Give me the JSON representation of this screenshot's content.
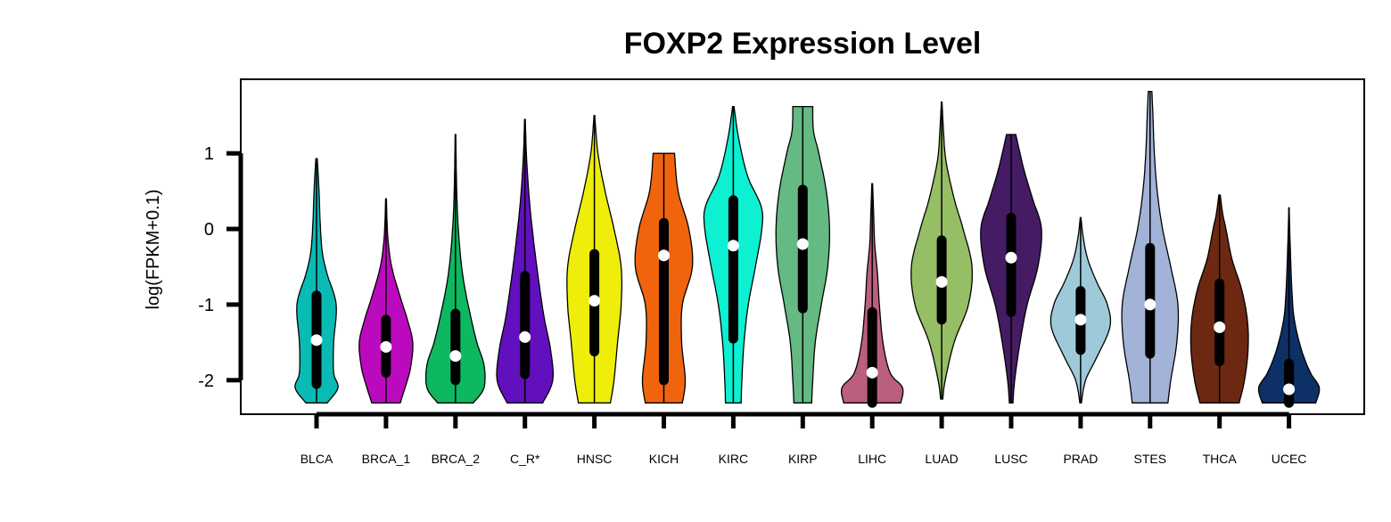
{
  "chart_data": {
    "type": "violin",
    "title": "FOXP2 Expression Level",
    "xlabel": "",
    "ylabel": "log(FPKM+0.1)",
    "ylim": [
      -2.45,
      1.98
    ],
    "yticks": [
      1,
      0,
      -1,
      -2
    ],
    "legend": "none",
    "grid": false,
    "series": [
      {
        "category": "BLCA",
        "color": "#0ABAB5",
        "min": -2.3,
        "max": 0.93,
        "q1": -2.05,
        "q3": -0.88,
        "median": -1.47,
        "profile": [
          [
            -2.3,
            0.3
          ],
          [
            -2.1,
            0.6
          ],
          [
            -1.9,
            0.48
          ],
          [
            -1.5,
            0.48
          ],
          [
            -1.0,
            0.55
          ],
          [
            -0.6,
            0.3
          ],
          [
            -0.3,
            0.16
          ],
          [
            0.1,
            0.1
          ],
          [
            0.5,
            0.07
          ],
          [
            0.93,
            0.02
          ]
        ]
      },
      {
        "category": "BRCA_1",
        "color": "#BB0ABE",
        "min": -2.3,
        "max": 0.4,
        "q1": -1.9,
        "q3": -1.2,
        "median": -1.56,
        "profile": [
          [
            -2.3,
            0.4
          ],
          [
            -2.0,
            0.6
          ],
          [
            -1.8,
            0.7
          ],
          [
            -1.5,
            0.75
          ],
          [
            -1.2,
            0.6
          ],
          [
            -0.9,
            0.4
          ],
          [
            -0.5,
            0.16
          ],
          [
            -0.1,
            0.05
          ],
          [
            0.4,
            0.01
          ]
        ]
      },
      {
        "category": "BRCA_2",
        "color": "#0DB861",
        "min": -2.3,
        "max": 1.25,
        "q1": -2.0,
        "q3": -1.12,
        "median": -1.68,
        "profile": [
          [
            -2.3,
            0.5
          ],
          [
            -2.1,
            0.8
          ],
          [
            -1.8,
            0.8
          ],
          [
            -1.5,
            0.6
          ],
          [
            -1.1,
            0.4
          ],
          [
            -0.6,
            0.2
          ],
          [
            0.0,
            0.08
          ],
          [
            0.6,
            0.03
          ],
          [
            1.25,
            0.01
          ]
        ]
      },
      {
        "category": "C_R*",
        "color": "#6210BE",
        "min": -2.3,
        "max": 1.45,
        "q1": -1.92,
        "q3": -0.62,
        "median": -1.43,
        "profile": [
          [
            -2.3,
            0.5
          ],
          [
            -2.0,
            0.78
          ],
          [
            -1.6,
            0.72
          ],
          [
            -1.2,
            0.55
          ],
          [
            -0.8,
            0.42
          ],
          [
            -0.3,
            0.28
          ],
          [
            0.3,
            0.14
          ],
          [
            0.9,
            0.05
          ],
          [
            1.45,
            0.01
          ]
        ]
      },
      {
        "category": "HNSC",
        "color": "#EEEE0A",
        "min": -2.3,
        "max": 1.5,
        "q1": -1.62,
        "q3": -0.33,
        "median": -0.95,
        "profile": [
          [
            -2.3,
            0.45
          ],
          [
            -2.0,
            0.55
          ],
          [
            -1.5,
            0.65
          ],
          [
            -1.0,
            0.75
          ],
          [
            -0.5,
            0.75
          ],
          [
            0.0,
            0.55
          ],
          [
            0.5,
            0.3
          ],
          [
            1.0,
            0.1
          ],
          [
            1.5,
            0.01
          ]
        ]
      },
      {
        "category": "KICH",
        "color": "#F0640E",
        "min": -2.3,
        "max": 1.0,
        "q1": -2.0,
        "q3": 0.08,
        "median": -0.35,
        "profile": [
          [
            -2.3,
            0.52
          ],
          [
            -2.0,
            0.6
          ],
          [
            -1.5,
            0.5
          ],
          [
            -1.0,
            0.52
          ],
          [
            -0.5,
            0.8
          ],
          [
            0.0,
            0.7
          ],
          [
            0.5,
            0.4
          ],
          [
            1.0,
            0.3
          ]
        ]
      },
      {
        "category": "KIRC",
        "color": "#0DF0D2",
        "min": -2.3,
        "max": 1.62,
        "q1": -1.45,
        "q3": 0.38,
        "median": -0.22,
        "profile": [
          [
            -2.3,
            0.22
          ],
          [
            -2.0,
            0.24
          ],
          [
            -1.5,
            0.3
          ],
          [
            -1.0,
            0.42
          ],
          [
            -0.5,
            0.62
          ],
          [
            0.0,
            0.8
          ],
          [
            0.3,
            0.78
          ],
          [
            0.7,
            0.4
          ],
          [
            1.2,
            0.15
          ],
          [
            1.62,
            0.02
          ]
        ]
      },
      {
        "category": "KIRP",
        "color": "#64BA82",
        "min": -2.3,
        "max": 1.62,
        "q1": -1.05,
        "q3": 0.52,
        "median": -0.2,
        "profile": [
          [
            -2.3,
            0.25
          ],
          [
            -2.0,
            0.28
          ],
          [
            -1.5,
            0.35
          ],
          [
            -1.0,
            0.52
          ],
          [
            -0.5,
            0.7
          ],
          [
            0.0,
            0.75
          ],
          [
            0.5,
            0.66
          ],
          [
            1.0,
            0.45
          ],
          [
            1.3,
            0.3
          ],
          [
            1.62,
            0.28
          ]
        ]
      },
      {
        "category": "LIHC",
        "color": "#BA5F7C",
        "min": -2.3,
        "max": 0.6,
        "q1": -2.3,
        "q3": -1.1,
        "median": -1.9,
        "profile": [
          [
            -2.3,
            0.8
          ],
          [
            -2.1,
            0.85
          ],
          [
            -1.9,
            0.5
          ],
          [
            -1.5,
            0.3
          ],
          [
            -1.0,
            0.2
          ],
          [
            -0.6,
            0.15
          ],
          [
            -0.2,
            0.07
          ],
          [
            0.2,
            0.04
          ],
          [
            0.6,
            0.01
          ]
        ]
      },
      {
        "category": "LUAD",
        "color": "#96BE64",
        "min": -2.25,
        "max": 1.68,
        "q1": -1.2,
        "q3": -0.15,
        "median": -0.7,
        "profile": [
          [
            -2.25,
            0.03
          ],
          [
            -2.0,
            0.1
          ],
          [
            -1.5,
            0.35
          ],
          [
            -1.0,
            0.75
          ],
          [
            -0.5,
            0.85
          ],
          [
            0.0,
            0.6
          ],
          [
            0.4,
            0.35
          ],
          [
            0.9,
            0.12
          ],
          [
            1.3,
            0.05
          ],
          [
            1.68,
            0.01
          ]
        ]
      },
      {
        "category": "LUSC",
        "color": "#451C64",
        "min": -2.3,
        "max": 1.25,
        "q1": -1.1,
        "q3": 0.15,
        "median": -0.38,
        "profile": [
          [
            -2.3,
            0.05
          ],
          [
            -2.0,
            0.1
          ],
          [
            -1.5,
            0.25
          ],
          [
            -1.0,
            0.45
          ],
          [
            -0.5,
            0.75
          ],
          [
            0.0,
            0.85
          ],
          [
            0.4,
            0.6
          ],
          [
            0.8,
            0.35
          ],
          [
            1.25,
            0.13
          ]
        ]
      },
      {
        "category": "PRAD",
        "color": "#9EC9D9",
        "min": -2.3,
        "max": 0.15,
        "q1": -1.6,
        "q3": -0.82,
        "median": -1.2,
        "profile": [
          [
            -2.3,
            0.02
          ],
          [
            -2.0,
            0.14
          ],
          [
            -1.7,
            0.45
          ],
          [
            -1.3,
            0.82
          ],
          [
            -1.0,
            0.75
          ],
          [
            -0.7,
            0.45
          ],
          [
            -0.4,
            0.2
          ],
          [
            -0.1,
            0.07
          ],
          [
            0.15,
            0.01
          ]
        ]
      },
      {
        "category": "STES",
        "color": "#A3B2D7",
        "min": -2.3,
        "max": 1.82,
        "q1": -1.65,
        "q3": -0.25,
        "median": -1.0,
        "profile": [
          [
            -2.3,
            0.5
          ],
          [
            -2.0,
            0.58
          ],
          [
            -1.5,
            0.75
          ],
          [
            -1.0,
            0.78
          ],
          [
            -0.5,
            0.58
          ],
          [
            0.0,
            0.35
          ],
          [
            0.5,
            0.2
          ],
          [
            1.0,
            0.12
          ],
          [
            1.5,
            0.08
          ],
          [
            1.82,
            0.05
          ]
        ]
      },
      {
        "category": "THCA",
        "color": "#6C2810",
        "min": -2.3,
        "max": 0.45,
        "q1": -1.75,
        "q3": -0.72,
        "median": -1.3,
        "profile": [
          [
            -2.3,
            0.55
          ],
          [
            -2.0,
            0.7
          ],
          [
            -1.6,
            0.8
          ],
          [
            -1.2,
            0.78
          ],
          [
            -0.8,
            0.62
          ],
          [
            -0.4,
            0.35
          ],
          [
            0.0,
            0.18
          ],
          [
            0.2,
            0.09
          ],
          [
            0.45,
            0.02
          ]
        ]
      },
      {
        "category": "UCEC",
        "color": "#0D3067",
        "min": -2.3,
        "max": 0.28,
        "q1": -2.3,
        "q3": -1.78,
        "median": -2.12,
        "profile": [
          [
            -2.3,
            0.75
          ],
          [
            -2.1,
            0.85
          ],
          [
            -1.9,
            0.6
          ],
          [
            -1.6,
            0.35
          ],
          [
            -1.2,
            0.15
          ],
          [
            -0.8,
            0.08
          ],
          [
            -0.3,
            0.04
          ],
          [
            0.0,
            0.02
          ],
          [
            0.28,
            0.005
          ]
        ]
      }
    ]
  }
}
